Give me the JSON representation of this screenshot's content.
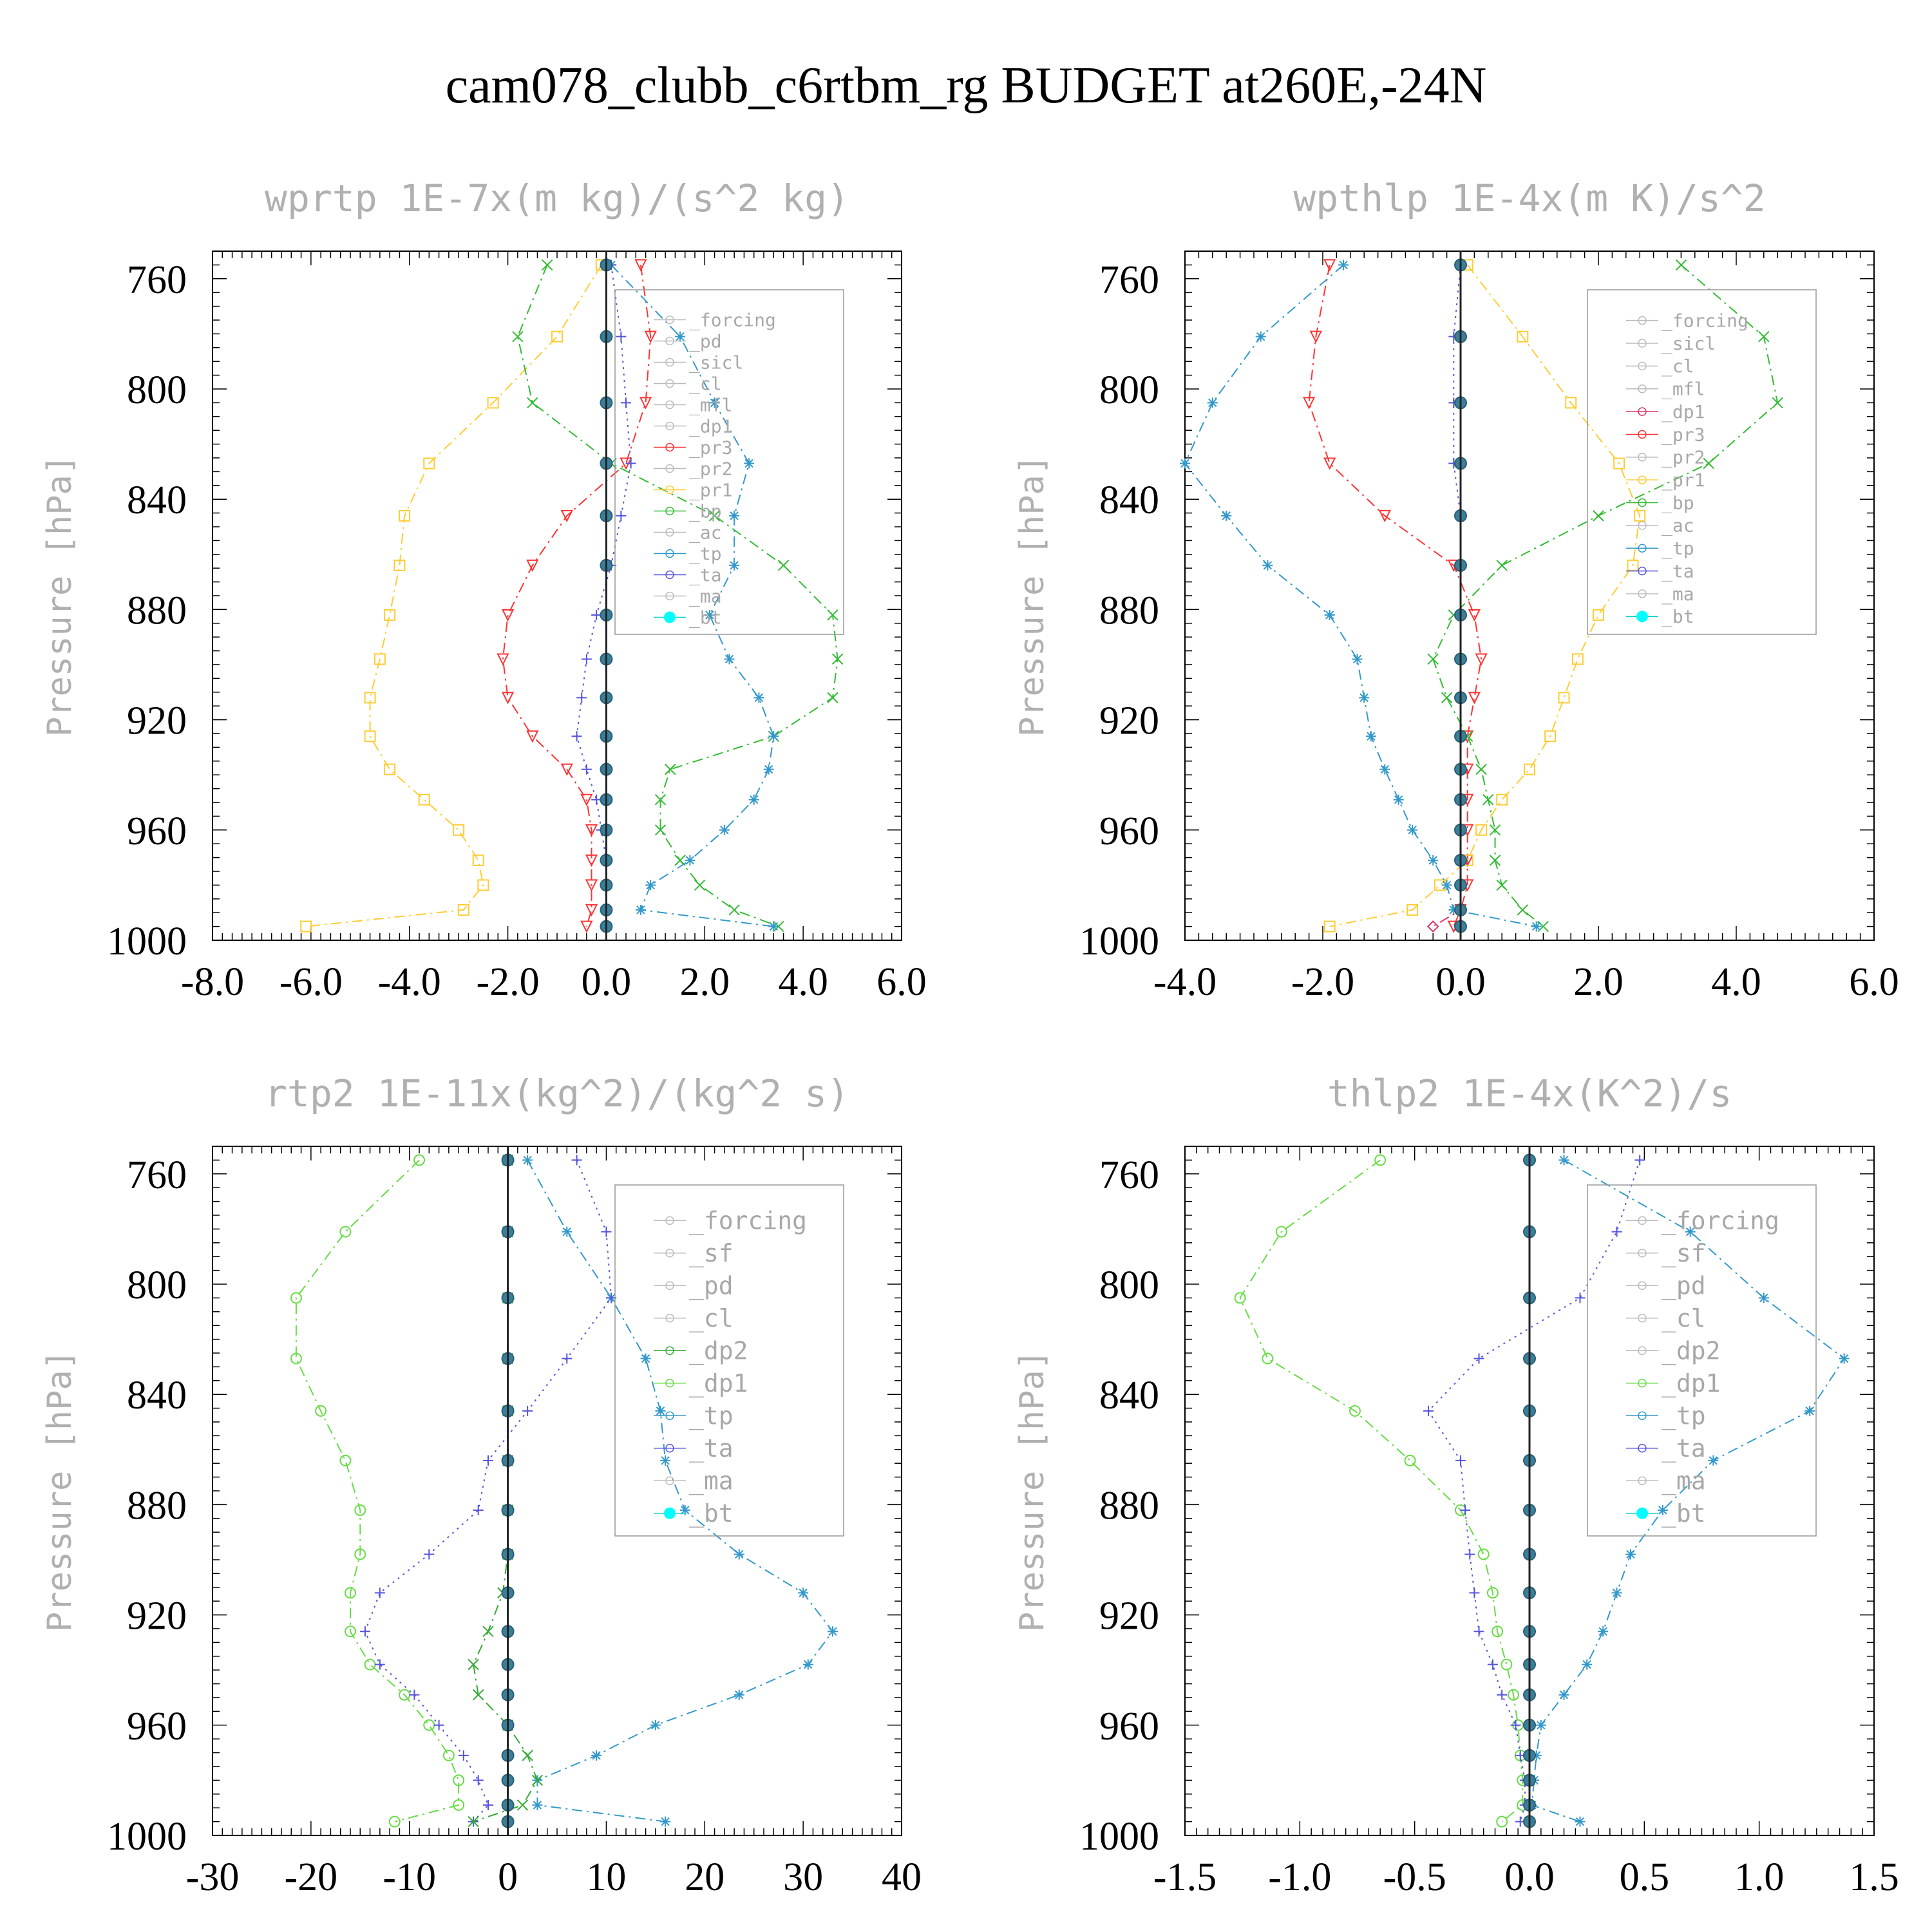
{
  "title": "cam078_clubb_c6rtbm_rg  BUDGET at260E,-24N",
  "chart_data": [
    {
      "type": "line",
      "title": "wprtp  1E-7x(m kg)/(s^2 kg)",
      "ylabel": "Pressure [hPa]",
      "xlim": [
        -8,
        6
      ],
      "xticks": [
        "-8.0",
        "-6.0",
        "-4.0",
        "-2.0",
        "0.0",
        "2.0",
        "4.0",
        "6.0"
      ],
      "ylim": [
        750,
        1000
      ],
      "yticks": [
        "760",
        "800",
        "840",
        "880",
        "920",
        "960",
        "1000"
      ],
      "pressure": [
        755,
        781,
        805,
        827,
        846,
        864,
        882,
        898,
        912,
        926,
        938,
        949,
        960,
        971,
        980,
        989,
        995
      ],
      "legend": [
        "_forcing",
        "_pd",
        "_sicl",
        "_cl",
        "_mfl",
        "_dp1",
        "_pr3",
        "_pr2",
        "_pr1",
        "_bp",
        "_ac",
        "_tp",
        "_ta",
        "_ma",
        "_bt"
      ],
      "series": [
        {
          "name": "_pr3",
          "color": "#ff3333",
          "marker": "tri-down",
          "dash": "dashdot",
          "values": [
            0.7,
            0.9,
            0.8,
            0.4,
            -0.8,
            -1.5,
            -2.0,
            -2.1,
            -2.0,
            -1.5,
            -0.8,
            -0.4,
            -0.3,
            -0.3,
            -0.3,
            -0.3,
            -0.4
          ]
        },
        {
          "name": "_pr1",
          "color": "#ffcc33",
          "marker": "square",
          "dash": "dashdot",
          "values": [
            -0.1,
            -1.0,
            -2.3,
            -3.6,
            -4.1,
            -4.2,
            -4.4,
            -4.6,
            -4.8,
            -4.8,
            -4.4,
            -3.7,
            -3.0,
            -2.6,
            -2.5,
            -2.9,
            -6.1
          ]
        },
        {
          "name": "_bp",
          "color": "#33bb33",
          "marker": "x",
          "dash": "dashdot",
          "values": [
            -1.2,
            -1.8,
            -1.5,
            0.1,
            2.2,
            3.6,
            4.6,
            4.7,
            4.6,
            3.4,
            1.3,
            1.1,
            1.1,
            1.5,
            1.9,
            2.6,
            3.5
          ]
        },
        {
          "name": "_tp",
          "color": "#3399cc",
          "marker": "star",
          "dash": "dashdot",
          "values": [
            0.1,
            1.5,
            2.2,
            2.9,
            2.6,
            2.6,
            2.1,
            2.5,
            3.1,
            3.4,
            3.3,
            3.0,
            2.4,
            1.7,
            0.9,
            0.7,
            3.4
          ]
        },
        {
          "name": "_ta",
          "color": "#5555dd",
          "marker": "plus",
          "dash": "dot",
          "values": [
            0.1,
            0.3,
            0.4,
            0.5,
            0.3,
            0.1,
            -0.2,
            -0.4,
            -0.5,
            -0.6,
            -0.4,
            -0.2,
            -0.1,
            0.0,
            0.0,
            0.0,
            0.0
          ]
        },
        {
          "name": "_bt",
          "color": "#00cccc",
          "marker": "dot",
          "dash": "solid",
          "values": [
            0,
            0,
            0,
            0,
            0,
            0,
            0,
            0,
            0,
            0,
            0,
            0,
            0,
            0,
            0,
            0,
            0
          ]
        }
      ]
    },
    {
      "type": "line",
      "title": "wpthlp  1E-4x(m K)/s^2",
      "ylabel": "Pressure [hPa]",
      "xlim": [
        -4,
        6
      ],
      "xticks": [
        "-4.0",
        "-2.0",
        "0.0",
        "2.0",
        "4.0",
        "6.0"
      ],
      "ylim": [
        750,
        1000
      ],
      "yticks": [
        "760",
        "800",
        "840",
        "880",
        "920",
        "960",
        "1000"
      ],
      "pressure": [
        755,
        781,
        805,
        827,
        846,
        864,
        882,
        898,
        912,
        926,
        938,
        949,
        960,
        971,
        980,
        989,
        995
      ],
      "legend": [
        "_forcing",
        "_sicl",
        "_cl",
        "_mfl",
        "_dp1",
        "_pr3",
        "_pr2",
        "_pr1",
        "_bp",
        "_ac",
        "_tp",
        "_ta",
        "_ma",
        "_bt"
      ],
      "series": [
        {
          "name": "_pr3",
          "color": "#ff3333",
          "marker": "tri-down",
          "dash": "dashdot",
          "values": [
            -1.9,
            -2.1,
            -2.2,
            -1.9,
            -1.1,
            -0.1,
            0.2,
            0.3,
            0.2,
            0.1,
            0.1,
            0.1,
            0.1,
            0.1,
            0.1,
            0.0,
            -0.1
          ]
        },
        {
          "name": "_pr1",
          "color": "#ffcc33",
          "marker": "square",
          "dash": "dashdot",
          "values": [
            0.1,
            0.9,
            1.6,
            2.3,
            2.6,
            2.5,
            2.0,
            1.7,
            1.5,
            1.3,
            1.0,
            0.6,
            0.3,
            0.1,
            -0.3,
            -0.7,
            -1.9
          ]
        },
        {
          "name": "_bp",
          "color": "#33bb33",
          "marker": "x",
          "dash": "dashdot",
          "values": [
            3.2,
            4.4,
            4.6,
            3.6,
            2.0,
            0.6,
            -0.1,
            -0.4,
            -0.2,
            0.1,
            0.3,
            0.4,
            0.5,
            0.5,
            0.6,
            0.9,
            1.2
          ]
        },
        {
          "name": "_tp",
          "color": "#3399cc",
          "marker": "star",
          "dash": "dashdot",
          "values": [
            -1.7,
            -2.9,
            -3.6,
            -4.0,
            -3.4,
            -2.8,
            -1.9,
            -1.5,
            -1.4,
            -1.3,
            -1.1,
            -0.9,
            -0.7,
            -0.4,
            -0.2,
            -0.1,
            1.1
          ]
        },
        {
          "name": "_ta",
          "color": "#5555dd",
          "marker": "plus",
          "dash": "dot",
          "values": [
            0.0,
            -0.1,
            -0.1,
            -0.1,
            0.0,
            0.0,
            0.0,
            0.0,
            0.0,
            0.0,
            0.0,
            0.0,
            0.0,
            0.0,
            0.0,
            0.0,
            0.0
          ]
        },
        {
          "name": "_dp1",
          "color": "#dd3366",
          "marker": "diamond",
          "dash": "dashdot",
          "values": [
            0,
            0,
            0,
            0,
            0,
            0,
            0,
            0,
            0,
            0,
            0,
            0,
            0,
            0,
            0,
            0,
            -0.4
          ]
        },
        {
          "name": "_bt",
          "color": "#00cccc",
          "marker": "dot",
          "dash": "solid",
          "values": [
            0,
            0,
            0,
            0,
            0,
            0,
            0,
            0,
            0,
            0,
            0,
            0,
            0,
            0,
            0,
            0,
            0
          ]
        }
      ]
    },
    {
      "type": "line",
      "title": "rtp2  1E-11x(kg^2)/(kg^2 s)",
      "ylabel": "Pressure [hPa]",
      "xlim": [
        -30,
        40
      ],
      "xticks": [
        "-30",
        "-20",
        "-10",
        "0",
        "10",
        "20",
        "30",
        "40"
      ],
      "ylim": [
        750,
        1000
      ],
      "yticks": [
        "760",
        "800",
        "840",
        "880",
        "920",
        "960",
        "1000"
      ],
      "pressure": [
        755,
        781,
        805,
        827,
        846,
        864,
        882,
        898,
        912,
        926,
        938,
        949,
        960,
        971,
        980,
        989,
        995
      ],
      "legend": [
        "_forcing",
        "_sf",
        "_pd",
        "_cl",
        "_dp2",
        "_dp1",
        "_tp",
        "_ta",
        "_ma",
        "_bt"
      ],
      "series": [
        {
          "name": "_dp1",
          "color": "#66dd44",
          "marker": "circle",
          "dash": "dashdot",
          "values": [
            -9.0,
            -16.5,
            -21.5,
            -21.5,
            -19.0,
            -16.5,
            -15.0,
            -15.0,
            -16.0,
            -16.0,
            -14.0,
            -10.5,
            -8.0,
            -6.0,
            -5.0,
            -5.0,
            -11.5
          ]
        },
        {
          "name": "_tp",
          "color": "#3399cc",
          "marker": "star",
          "dash": "dashdot",
          "values": [
            2.0,
            6.0,
            10.5,
            14.0,
            15.5,
            16.0,
            18.0,
            23.5,
            30.0,
            33.0,
            30.5,
            23.5,
            15.0,
            9.0,
            3.0,
            3.0,
            16.0
          ]
        },
        {
          "name": "_ta",
          "color": "#5555dd",
          "marker": "plus",
          "dash": "dot",
          "values": [
            7.0,
            10.0,
            10.5,
            6.0,
            2.0,
            -2.0,
            -3.0,
            -8.0,
            -13.0,
            -14.5,
            -13.0,
            -9.5,
            -7.0,
            -4.5,
            -3.0,
            -2.0,
            -3.5
          ]
        },
        {
          "name": "_dp2",
          "color": "#33aa33",
          "marker": "x",
          "dash": "dashdot",
          "values": [
            0,
            0,
            0,
            0,
            0,
            0,
            0,
            0,
            -0.5,
            -2.0,
            -3.5,
            -3.0,
            0.0,
            2.0,
            3.0,
            1.5,
            -3.5
          ]
        },
        {
          "name": "_bt",
          "color": "#00cccc",
          "marker": "dot",
          "dash": "solid",
          "values": [
            0,
            0,
            0,
            0,
            0,
            0,
            0,
            0,
            0,
            0,
            0,
            0,
            0,
            0,
            0,
            0,
            0
          ]
        }
      ]
    },
    {
      "type": "line",
      "title": "thlp2  1E-4x(K^2)/s",
      "ylabel": "Pressure [hPa]",
      "xlim": [
        -1.5,
        1.5
      ],
      "xticks": [
        "-1.5",
        "-1.0",
        "-0.5",
        "0.0",
        "0.5",
        "1.0",
        "1.5"
      ],
      "ylim": [
        750,
        1000
      ],
      "yticks": [
        "760",
        "800",
        "840",
        "880",
        "920",
        "960",
        "1000"
      ],
      "pressure": [
        755,
        781,
        805,
        827,
        846,
        864,
        882,
        898,
        912,
        926,
        938,
        949,
        960,
        971,
        980,
        989,
        995
      ],
      "legend": [
        "_forcing",
        "_sf",
        "_pd",
        "_cl",
        "_dp2",
        "_dp1",
        "_tp",
        "_ta",
        "_ma",
        "_bt"
      ],
      "series": [
        {
          "name": "_dp1",
          "color": "#66dd44",
          "marker": "circle",
          "dash": "dashdot",
          "values": [
            -0.65,
            -1.08,
            -1.26,
            -1.14,
            -0.76,
            -0.52,
            -0.3,
            -0.2,
            -0.16,
            -0.14,
            -0.1,
            -0.07,
            -0.05,
            -0.04,
            -0.03,
            -0.03,
            -0.12
          ]
        },
        {
          "name": "_tp",
          "color": "#3399cc",
          "marker": "star",
          "dash": "dashdot",
          "values": [
            0.15,
            0.7,
            1.02,
            1.37,
            1.22,
            0.8,
            0.58,
            0.44,
            0.38,
            0.32,
            0.25,
            0.15,
            0.05,
            0.03,
            0.02,
            0.01,
            0.22
          ]
        },
        {
          "name": "_ta",
          "color": "#5555dd",
          "marker": "plus",
          "dash": "dot",
          "values": [
            0.48,
            0.38,
            0.22,
            -0.22,
            -0.44,
            -0.3,
            -0.28,
            -0.26,
            -0.24,
            -0.22,
            -0.16,
            -0.12,
            -0.06,
            -0.04,
            -0.02,
            -0.02,
            -0.04
          ]
        },
        {
          "name": "_bt",
          "color": "#00cccc",
          "marker": "dot",
          "dash": "solid",
          "values": [
            0,
            0,
            0,
            0,
            0,
            0,
            0,
            0,
            0,
            0,
            0,
            0,
            0,
            0,
            0,
            0,
            0
          ]
        }
      ]
    }
  ]
}
